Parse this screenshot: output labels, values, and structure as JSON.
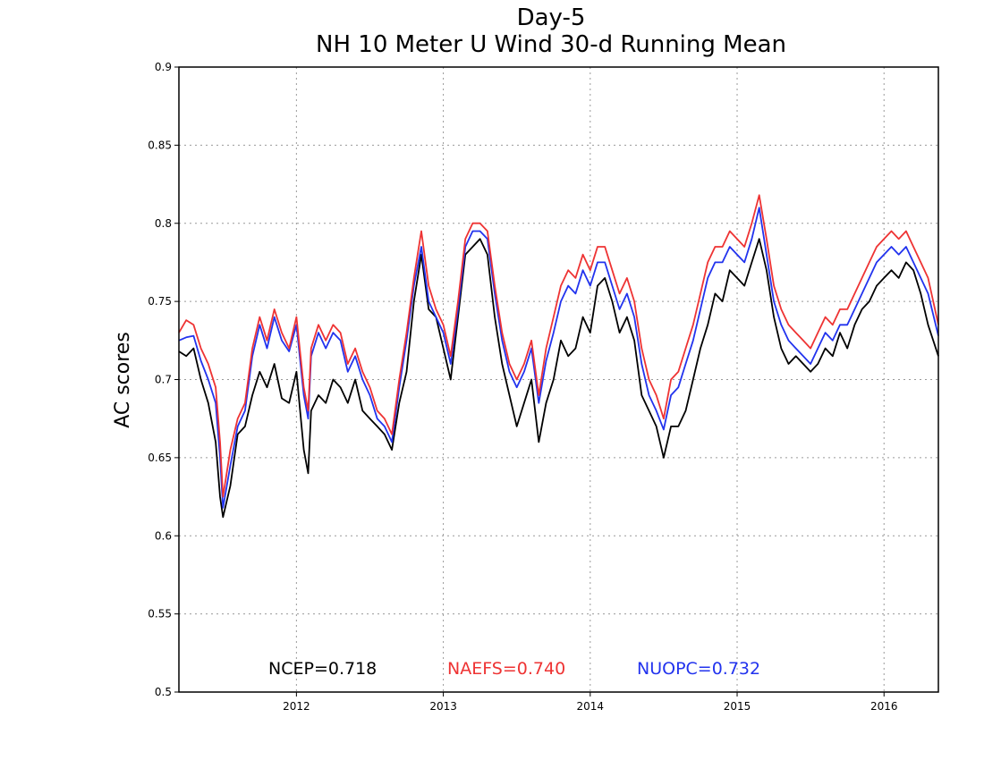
{
  "chart_data": {
    "type": "line",
    "title": "Day-5",
    "subtitle": "NH 10 Meter U Wind 30-d Running Mean",
    "xlabel": "",
    "ylabel": "AC scores",
    "xlim": [
      2011.2,
      2016.37
    ],
    "ylim": [
      0.5,
      0.9
    ],
    "x_ticks": [
      "2012",
      "2013",
      "2014",
      "2015",
      "2016"
    ],
    "y_ticks": [
      "0.5",
      "0.55",
      "0.6",
      "0.65",
      "0.7",
      "0.75",
      "0.8",
      "0.85",
      "0.9"
    ],
    "grid": true,
    "colors": {
      "NCEP": "#000000",
      "NAEFS": "#ee3333",
      "NUOPC": "#2233ee"
    },
    "x": [
      2011.2,
      2011.25,
      2011.3,
      2011.35,
      2011.4,
      2011.45,
      2011.48,
      2011.5,
      2011.55,
      2011.6,
      2011.65,
      2011.7,
      2011.75,
      2011.8,
      2011.85,
      2011.9,
      2011.95,
      2012.0,
      2012.05,
      2012.08,
      2012.1,
      2012.15,
      2012.2,
      2012.25,
      2012.3,
      2012.35,
      2012.4,
      2012.45,
      2012.5,
      2012.55,
      2012.6,
      2012.65,
      2012.7,
      2012.75,
      2012.8,
      2012.85,
      2012.9,
      2012.95,
      2013.0,
      2013.05,
      2013.1,
      2013.15,
      2013.2,
      2013.25,
      2013.3,
      2013.35,
      2013.4,
      2013.45,
      2013.5,
      2013.55,
      2013.6,
      2013.65,
      2013.7,
      2013.75,
      2013.8,
      2013.85,
      2013.9,
      2013.95,
      2014.0,
      2014.05,
      2014.1,
      2014.15,
      2014.2,
      2014.25,
      2014.3,
      2014.35,
      2014.4,
      2014.45,
      2014.5,
      2014.55,
      2014.6,
      2014.65,
      2014.7,
      2014.75,
      2014.8,
      2014.85,
      2014.9,
      2014.95,
      2015.0,
      2015.05,
      2015.1,
      2015.15,
      2015.2,
      2015.25,
      2015.3,
      2015.35,
      2015.4,
      2015.45,
      2015.5,
      2015.55,
      2015.6,
      2015.65,
      2015.7,
      2015.75,
      2015.8,
      2015.85,
      2015.9,
      2015.95,
      2016.0,
      2016.05,
      2016.1,
      2016.15,
      2016.2,
      2016.25,
      2016.3,
      2016.37
    ],
    "series": [
      {
        "name": "NCEP",
        "label": "NCEP=0.718",
        "values": [
          0.718,
          0.715,
          0.72,
          0.7,
          0.685,
          0.66,
          0.625,
          0.612,
          0.632,
          0.665,
          0.67,
          0.69,
          0.705,
          0.695,
          0.71,
          0.688,
          0.685,
          0.705,
          0.655,
          0.64,
          0.68,
          0.69,
          0.685,
          0.7,
          0.695,
          0.685,
          0.7,
          0.68,
          0.675,
          0.67,
          0.665,
          0.655,
          0.685,
          0.705,
          0.75,
          0.78,
          0.745,
          0.74,
          0.72,
          0.7,
          0.74,
          0.78,
          0.785,
          0.79,
          0.78,
          0.74,
          0.71,
          0.69,
          0.67,
          0.685,
          0.7,
          0.66,
          0.685,
          0.7,
          0.725,
          0.715,
          0.72,
          0.74,
          0.73,
          0.76,
          0.765,
          0.75,
          0.73,
          0.74,
          0.725,
          0.69,
          0.68,
          0.67,
          0.65,
          0.67,
          0.67,
          0.68,
          0.7,
          0.72,
          0.735,
          0.755,
          0.75,
          0.77,
          0.765,
          0.76,
          0.775,
          0.79,
          0.77,
          0.74,
          0.72,
          0.71,
          0.715,
          0.71,
          0.705,
          0.71,
          0.72,
          0.715,
          0.73,
          0.72,
          0.735,
          0.745,
          0.75,
          0.76,
          0.765,
          0.77,
          0.765,
          0.775,
          0.77,
          0.755,
          0.735,
          0.715
        ]
      },
      {
        "name": "NAEFS",
        "label": "NAEFS=0.740",
        "values": [
          0.73,
          0.738,
          0.735,
          0.72,
          0.71,
          0.695,
          0.66,
          0.625,
          0.655,
          0.675,
          0.685,
          0.72,
          0.74,
          0.725,
          0.745,
          0.73,
          0.72,
          0.74,
          0.695,
          0.68,
          0.72,
          0.735,
          0.725,
          0.735,
          0.73,
          0.71,
          0.72,
          0.705,
          0.695,
          0.68,
          0.675,
          0.665,
          0.7,
          0.73,
          0.765,
          0.795,
          0.76,
          0.745,
          0.735,
          0.715,
          0.75,
          0.79,
          0.8,
          0.8,
          0.795,
          0.76,
          0.73,
          0.71,
          0.7,
          0.71,
          0.725,
          0.69,
          0.72,
          0.74,
          0.76,
          0.77,
          0.765,
          0.78,
          0.77,
          0.785,
          0.785,
          0.77,
          0.755,
          0.765,
          0.75,
          0.72,
          0.7,
          0.69,
          0.675,
          0.7,
          0.705,
          0.72,
          0.735,
          0.755,
          0.775,
          0.785,
          0.785,
          0.795,
          0.79,
          0.785,
          0.8,
          0.818,
          0.79,
          0.76,
          0.745,
          0.735,
          0.73,
          0.725,
          0.72,
          0.73,
          0.74,
          0.735,
          0.745,
          0.745,
          0.755,
          0.765,
          0.775,
          0.785,
          0.79,
          0.795,
          0.79,
          0.795,
          0.785,
          0.775,
          0.765,
          0.735
        ]
      },
      {
        "name": "NUOPC",
        "label": "NUOPC=0.732",
        "values": [
          0.725,
          0.727,
          0.728,
          0.712,
          0.7,
          0.685,
          0.65,
          0.618,
          0.645,
          0.67,
          0.68,
          0.715,
          0.735,
          0.72,
          0.74,
          0.725,
          0.718,
          0.735,
          0.69,
          0.675,
          0.715,
          0.73,
          0.72,
          0.73,
          0.725,
          0.705,
          0.715,
          0.7,
          0.69,
          0.675,
          0.67,
          0.66,
          0.695,
          0.725,
          0.76,
          0.785,
          0.75,
          0.74,
          0.73,
          0.71,
          0.745,
          0.785,
          0.795,
          0.795,
          0.79,
          0.755,
          0.725,
          0.705,
          0.695,
          0.705,
          0.72,
          0.685,
          0.712,
          0.73,
          0.75,
          0.76,
          0.755,
          0.77,
          0.76,
          0.775,
          0.775,
          0.76,
          0.745,
          0.755,
          0.74,
          0.71,
          0.69,
          0.68,
          0.668,
          0.69,
          0.695,
          0.71,
          0.725,
          0.745,
          0.765,
          0.775,
          0.775,
          0.785,
          0.78,
          0.775,
          0.79,
          0.81,
          0.78,
          0.75,
          0.735,
          0.725,
          0.72,
          0.715,
          0.71,
          0.72,
          0.73,
          0.725,
          0.735,
          0.735,
          0.745,
          0.755,
          0.765,
          0.775,
          0.78,
          0.785,
          0.78,
          0.785,
          0.775,
          0.765,
          0.755,
          0.728
        ]
      }
    ]
  }
}
